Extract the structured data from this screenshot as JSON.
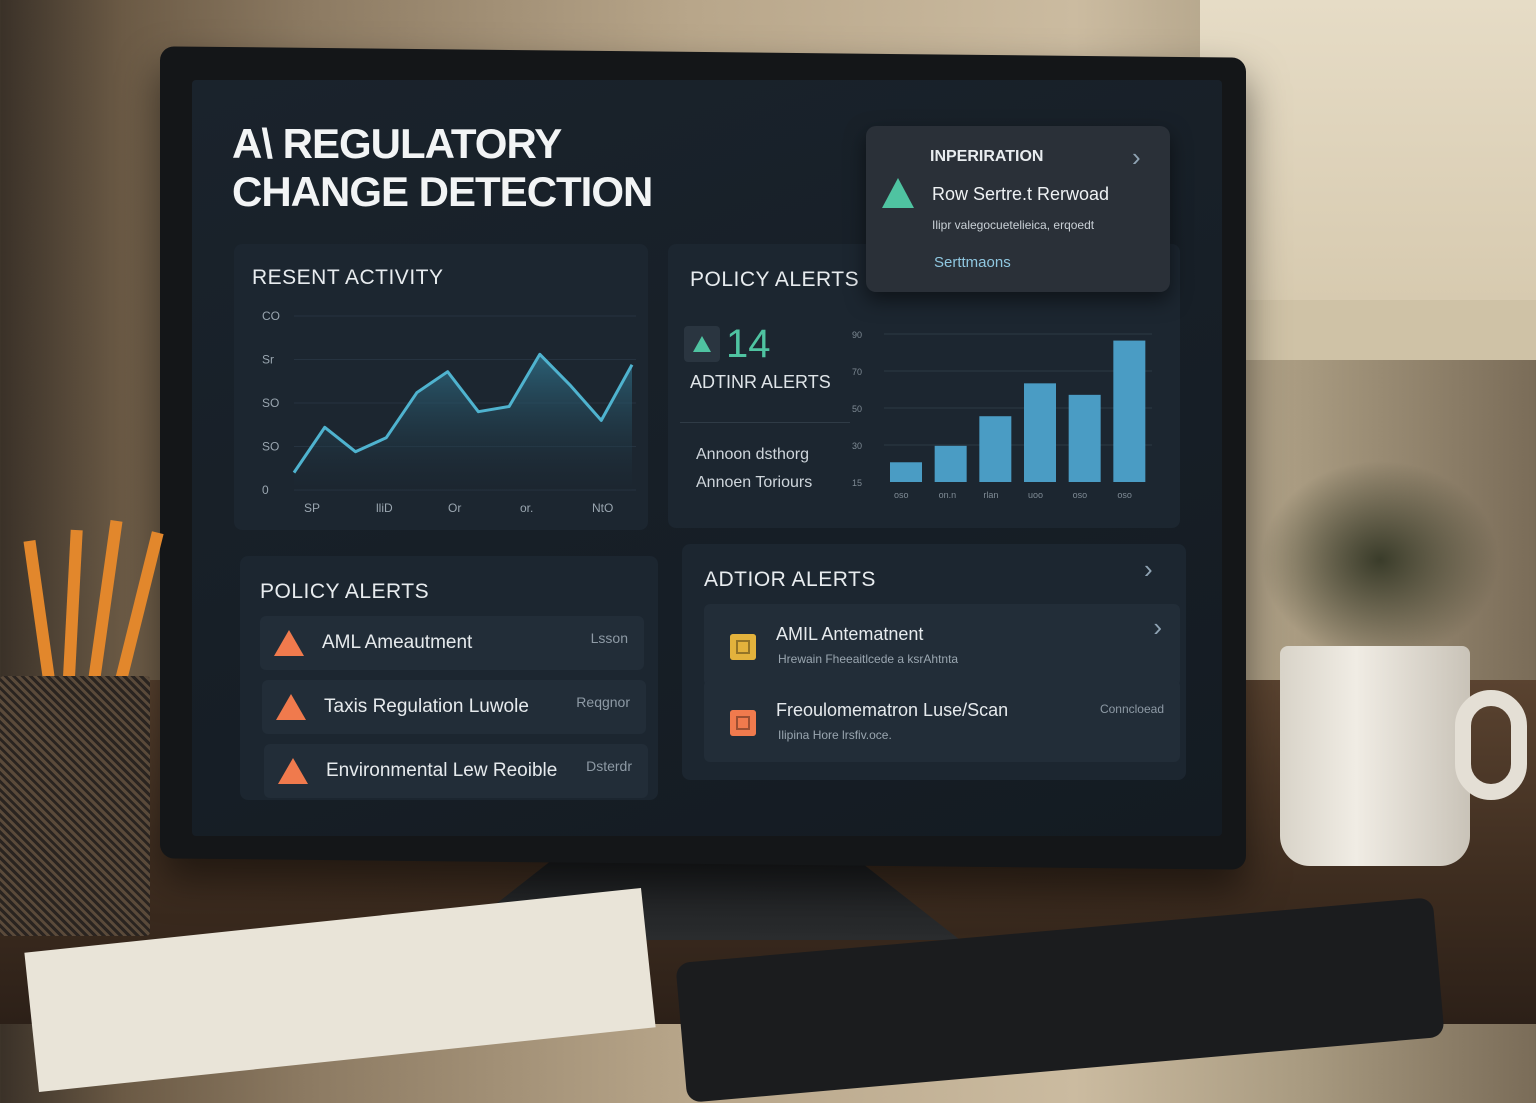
{
  "dashboard": {
    "title_line1": "A\\ REGULATORY",
    "title_line2": "CHANGE DETECTION"
  },
  "notification": {
    "heading": "INPERIRATION",
    "title": "Row Sertre.t Rerwoad",
    "body": "Ilipr valegocuetelieica, erqoedt",
    "link": "Serttmaons",
    "icon": "warning-triangle-icon",
    "icon_color": "#4fc3a1"
  },
  "recent_activity": {
    "title": "RESENT ACTIVITY"
  },
  "policy_alerts_top": {
    "title": "POLICY ALERTS",
    "count": "14",
    "count_label": "ADTINR ALERTS",
    "line1": "Annoon dsthorg",
    "line2": "Annoen Toriours",
    "accent": "#4fc3a1"
  },
  "policy_alerts_list": {
    "title": "POLICY ALERTS",
    "items": [
      {
        "label": "AML Ameautment",
        "side": "Lsson",
        "icon": "warning-triangle-icon"
      },
      {
        "label": "Taxis Regulation Luwole",
        "side": "Reqgnor",
        "icon": "warning-triangle-icon"
      },
      {
        "label": "Environmental Lew Reoible",
        "side": "Dsterdr",
        "icon": "warning-triangle-icon"
      }
    ],
    "icon_color": "#f07a4d"
  },
  "action_alerts": {
    "title": "ADTIOR ALERTS",
    "items": [
      {
        "label": "AMIL Antematnent",
        "sub": "Hrewain Fheeaitlcede a ksrAhtnta",
        "side": "",
        "icon": "document-icon",
        "icon_color": "#e3b23c"
      },
      {
        "label": "Freoulomematron Luse/Scan",
        "sub": "Ilipina Hore lrsfiv.oce.",
        "side": "Conncloead",
        "icon": "square-icon",
        "icon_color": "#f07a4d"
      }
    ]
  },
  "chart_data": [
    {
      "type": "area",
      "title": "RESENT ACTIVITY",
      "x_tick_labels": [
        "SP",
        "lliD",
        "Or",
        "or.",
        "NtO"
      ],
      "y_tick_labels": [
        "0",
        "SO",
        "SO",
        "Sr",
        "CO"
      ],
      "ylim": [
        0,
        100
      ],
      "grid": true,
      "color": "#4fb3cf",
      "x": [
        0,
        1,
        2,
        3,
        4,
        5,
        6,
        7,
        8,
        9,
        10,
        11
      ],
      "values": [
        10,
        36,
        22,
        30,
        56,
        68,
        45,
        48,
        78,
        60,
        40,
        72
      ]
    },
    {
      "type": "bar",
      "x_tick_labels": [
        "oso",
        "on.n",
        "rlan",
        "uoo",
        "oso",
        "oso"
      ],
      "y_tick_labels": [
        "15",
        "30",
        "50",
        "70",
        "90"
      ],
      "ylim": [
        0,
        90
      ],
      "grid": true,
      "color": "#4a9cc4",
      "values": [
        12,
        22,
        40,
        60,
        53,
        86
      ]
    }
  ]
}
